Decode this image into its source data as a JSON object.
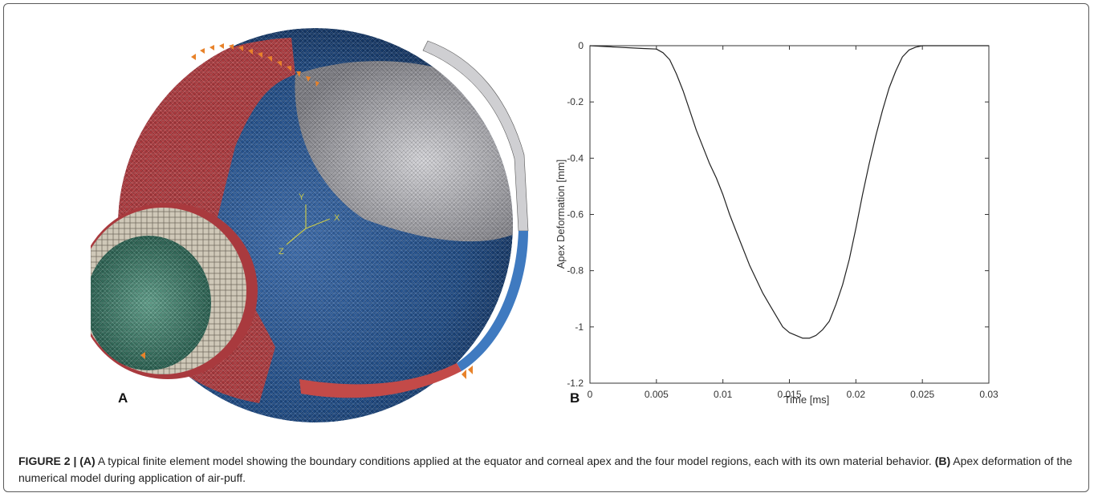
{
  "figure": {
    "panel_a_label": "A",
    "panel_b_label": "B",
    "caption": {
      "figure_label": "FIGURE 2 |",
      "panel_a_tag": "(A)",
      "panel_a_text": " A typical finite element model showing the boundary conditions applied at the equator and corneal apex and the four model regions, each with its own material behavior. ",
      "panel_b_tag": "(B)",
      "panel_b_text": " Apex deformation of the numerical model during application of air-puff."
    },
    "model": {
      "axis_labels": {
        "x": "X",
        "y": "Y",
        "z": "Z"
      },
      "colors": {
        "red": "#a93a3e",
        "blue": "#1f4a82",
        "gray": "#8e8e92",
        "green": "#2d6e5c",
        "white_ring": "#cfc8b8",
        "orange_marker": "#e8822a",
        "light_blue_band": "#3f7ac0"
      }
    }
  },
  "chart_data": {
    "type": "line",
    "xlabel": "Time [ms]",
    "ylabel": "Apex Deformation [mm]",
    "xlim": [
      0,
      0.03
    ],
    "ylim": [
      -1.2,
      0
    ],
    "xticks": [
      0,
      0.005,
      0.01,
      0.015,
      0.02,
      0.025,
      0.03
    ],
    "xtick_labels": [
      "0",
      "0.005",
      "0.01",
      "0.015",
      "0.02",
      "0.025",
      "0.03"
    ],
    "yticks": [
      0,
      -0.2,
      -0.4,
      -0.6,
      -0.8,
      -1,
      -1.2
    ],
    "ytick_labels": [
      "0",
      "-0.2",
      "-0.4",
      "-0.6",
      "-0.8",
      "-1",
      "-1.2"
    ],
    "grid": false,
    "series": [
      {
        "color": "#222222",
        "x": [
          0,
          0.002,
          0.004,
          0.005,
          0.0055,
          0.006,
          0.0065,
          0.007,
          0.0075,
          0.008,
          0.0085,
          0.009,
          0.0095,
          0.01,
          0.0105,
          0.011,
          0.0115,
          0.012,
          0.0125,
          0.013,
          0.0135,
          0.014,
          0.0145,
          0.015,
          0.0155,
          0.016,
          0.0165,
          0.017,
          0.0175,
          0.018,
          0.0185,
          0.019,
          0.0195,
          0.02,
          0.0205,
          0.021,
          0.0215,
          0.022,
          0.0225,
          0.023,
          0.0235,
          0.024,
          0.0245,
          0.025,
          0.026,
          0.028,
          0.03
        ],
        "y": [
          0,
          -0.005,
          -0.01,
          -0.012,
          -0.025,
          -0.05,
          -0.1,
          -0.16,
          -0.23,
          -0.3,
          -0.36,
          -0.42,
          -0.47,
          -0.53,
          -0.6,
          -0.66,
          -0.72,
          -0.78,
          -0.83,
          -0.88,
          -0.92,
          -0.96,
          -1.0,
          -1.02,
          -1.03,
          -1.04,
          -1.04,
          -1.03,
          -1.01,
          -0.98,
          -0.92,
          -0.85,
          -0.76,
          -0.65,
          -0.53,
          -0.42,
          -0.32,
          -0.23,
          -0.15,
          -0.09,
          -0.04,
          -0.015,
          -0.005,
          0,
          0,
          0,
          0
        ]
      }
    ]
  }
}
